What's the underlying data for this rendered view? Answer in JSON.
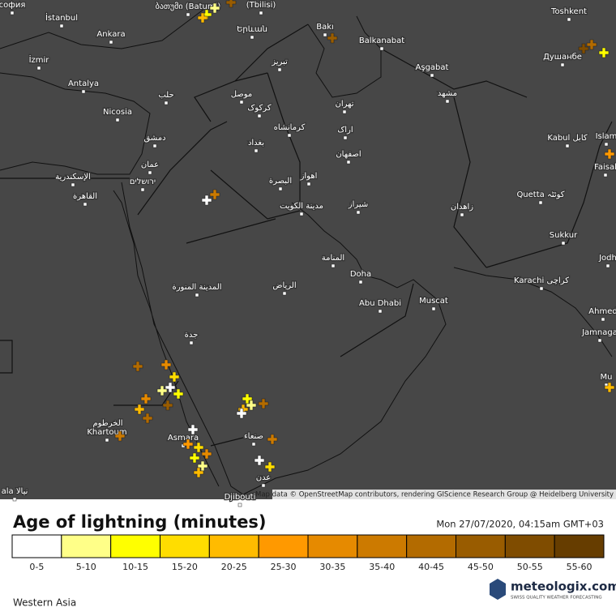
{
  "map": {
    "places": [
      "софия",
      "İstanbul",
      "Ankara",
      "İzmir",
      "Antalya",
      "Nicosia",
      "ბათუმი (Batumi)",
      "(Tbilisi)",
      "Երևան",
      "Bakı",
      "Balkanabat",
      "Aşgabat",
      "Toshkent",
      "Душанбе",
      "تبریز",
      "حلب",
      "موصل",
      "کرکوک",
      "تهران",
      "مشهد",
      "کرمانشاه",
      "اراک",
      "دمشق",
      "بغداد",
      "اصفهان",
      "Kabul كابل",
      "Islam",
      "عمان",
      "الإسكندرية",
      "ירושלים",
      "اهواز",
      "البصرة",
      "Faisal",
      "القاهرة",
      "Quetta كوئٹہ",
      "مدينة الكويت",
      "شيراز",
      "زاهدان",
      "Sukkur",
      "المنامة",
      "Jodh",
      "Doha",
      "Karachi کراچی",
      "المدينة المنورة",
      "الرياض",
      "Muscat",
      "Abu Dhabi",
      "Ahmed",
      "جدة",
      "Jamnaga",
      "Mu",
      "الخرطوم",
      "Khartoum",
      "Asmara",
      "صنعاء",
      "عدن",
      "Djibouti",
      "ala نيالا"
    ],
    "attribution": "Map data © OpenStreetMap contributors, rendering GIScience Research Group @ Heidelberg University"
  },
  "legend": {
    "title": "Age of lightning (minutes)",
    "timestamp": "Mon 27/07/2020, 04:15am GMT+03",
    "bins": [
      {
        "label": "0-5",
        "color": "#ffffff"
      },
      {
        "label": "5-10",
        "color": "#ffff88"
      },
      {
        "label": "10-15",
        "color": "#ffff00"
      },
      {
        "label": "15-20",
        "color": "#ffdd00"
      },
      {
        "label": "20-25",
        "color": "#ffbb00"
      },
      {
        "label": "25-30",
        "color": "#ff9900"
      },
      {
        "label": "30-35",
        "color": "#e68a00"
      },
      {
        "label": "35-40",
        "color": "#cc7a00"
      },
      {
        "label": "40-45",
        "color": "#b36b00"
      },
      {
        "label": "45-50",
        "color": "#995c00"
      },
      {
        "label": "50-55",
        "color": "#7f4c00"
      },
      {
        "label": "55-60",
        "color": "#663d00"
      }
    ]
  },
  "footer": {
    "region": "Western Asia",
    "brand": "meteologix.com",
    "tagline": "SWISS QUALITY WEATHER FORECASTING"
  }
}
